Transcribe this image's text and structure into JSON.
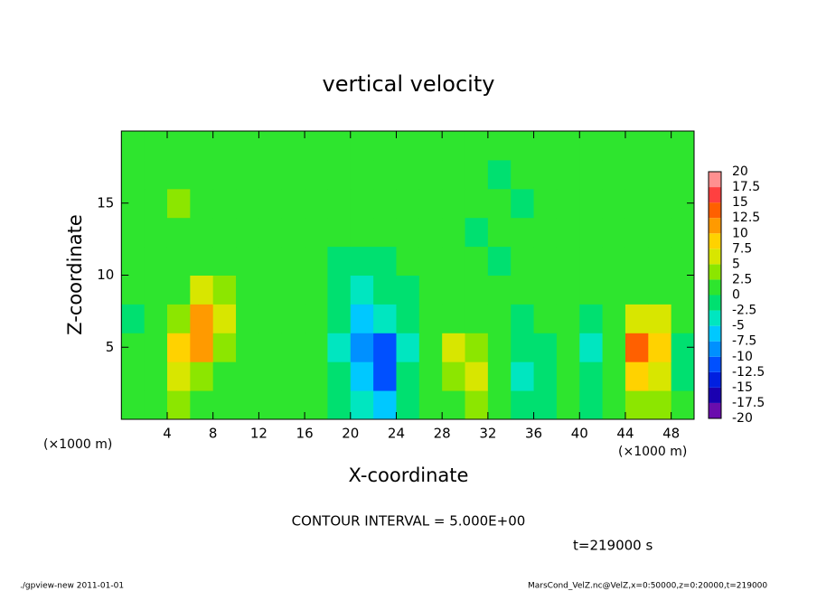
{
  "chart_data": {
    "type": "contour",
    "title": "vertical velocity",
    "xlabel": "X-coordinate",
    "ylabel": "Z-coordinate",
    "x_unit_label": "(×1000 m)",
    "contour_note": "CONTOUR INTERVAL = 5.000E+00",
    "time_note": "t=219000 s",
    "footer_left": "./gpview-new  2011-01-01",
    "footer_right": "MarsCond_VelZ.nc@VelZ,x=0:50000,z=0:20000,t=219000",
    "xlim": [
      0,
      50
    ],
    "ylim": [
      0,
      20
    ],
    "xticks": [
      4,
      8,
      12,
      16,
      20,
      24,
      28,
      32,
      36,
      40,
      44,
      48
    ],
    "yticks": [
      5,
      10,
      15
    ],
    "x": [
      1,
      3,
      5,
      7,
      9,
      11,
      13,
      15,
      17,
      19,
      21,
      23,
      25,
      27,
      29,
      31,
      33,
      35,
      37,
      39,
      41,
      43,
      45,
      47,
      49
    ],
    "y": [
      1,
      3,
      5,
      7,
      9,
      11,
      13,
      15,
      17,
      19
    ],
    "z": [
      [
        0.5,
        1,
        3,
        2,
        0.5,
        0.5,
        1,
        0.5,
        0.5,
        -1,
        -3,
        -6,
        -1,
        1,
        2,
        3,
        1,
        -2,
        -1,
        0.5,
        -1,
        1,
        4,
        3,
        0.5
      ],
      [
        0.5,
        2,
        5,
        4,
        1,
        0.5,
        0.5,
        0.5,
        0,
        -2,
        -6,
        -11,
        -2,
        1,
        4,
        6,
        2,
        -3,
        -1,
        0.5,
        -2,
        2,
        8,
        6,
        -1
      ],
      [
        0.5,
        1,
        8,
        11,
        3,
        0.5,
        0.5,
        0.5,
        0,
        -3,
        -8,
        -11,
        -3,
        0.5,
        5,
        4,
        1,
        -1,
        -0.5,
        0.5,
        -4,
        1,
        13,
        9,
        -1
      ],
      [
        -1,
        0.5,
        4,
        12,
        5,
        0.5,
        0.5,
        0.5,
        0,
        -2,
        -6,
        -5,
        -2,
        0,
        1,
        1,
        0.5,
        -0.5,
        0.5,
        0.5,
        -1,
        0.5,
        7,
        5,
        0.5
      ],
      [
        0.5,
        1,
        2,
        5,
        3,
        0.5,
        0.5,
        0.5,
        0,
        -1,
        -3,
        -2,
        -1,
        0,
        0.5,
        0.5,
        0,
        0.5,
        0.5,
        0,
        0,
        0.5,
        1,
        1,
        0.5
      ],
      [
        1,
        2,
        2,
        2,
        1,
        0.5,
        0.5,
        0.5,
        0,
        -0.5,
        -1,
        -0.5,
        0,
        0,
        0.5,
        0,
        -0.5,
        0,
        0.5,
        0,
        0.5,
        1,
        1,
        1,
        0.5
      ],
      [
        1,
        2,
        2,
        2,
        1,
        0.5,
        0.5,
        0,
        0,
        0,
        0,
        0,
        0,
        0.5,
        0,
        -0.5,
        0,
        0.5,
        0,
        0.5,
        0.5,
        1,
        1,
        1,
        0.5
      ],
      [
        1,
        2,
        3,
        2,
        1,
        0.5,
        0.5,
        0,
        0,
        0,
        0,
        0,
        0.5,
        0.5,
        0,
        0.5,
        0,
        -0.5,
        0.5,
        0.5,
        0.5,
        1,
        1,
        1,
        0.5
      ],
      [
        0.5,
        1,
        2,
        2,
        1,
        0.5,
        0.5,
        0,
        0,
        0,
        0,
        0.5,
        0.5,
        0.5,
        0,
        0.5,
        -0.5,
        0.5,
        0,
        0.5,
        0.5,
        0.5,
        1,
        0.5,
        0.5
      ],
      [
        0.5,
        0.5,
        1,
        1,
        0.5,
        0.5,
        0.5,
        0,
        0,
        0,
        0,
        0.5,
        0.5,
        0,
        0.5,
        0,
        0.5,
        0,
        0.5,
        0.5,
        0.5,
        0.5,
        0.5,
        0.5,
        0.5
      ]
    ],
    "levels": [
      -20,
      -17.5,
      -15,
      -12.5,
      -10,
      -7.5,
      -5,
      -2.5,
      0,
      2.5,
      5,
      7.5,
      10,
      12.5,
      15,
      17.5,
      20
    ],
    "colors": [
      "#6a0dad",
      "#1a00b0",
      "#0020e0",
      "#0050ff",
      "#0090ff",
      "#00c8ff",
      "#00e6c0",
      "#00e070",
      "#2ee52e",
      "#8ce600",
      "#d8e600",
      "#ffd200",
      "#ff9a00",
      "#ff6000",
      "#ff4040",
      "#ff9090"
    ]
  }
}
